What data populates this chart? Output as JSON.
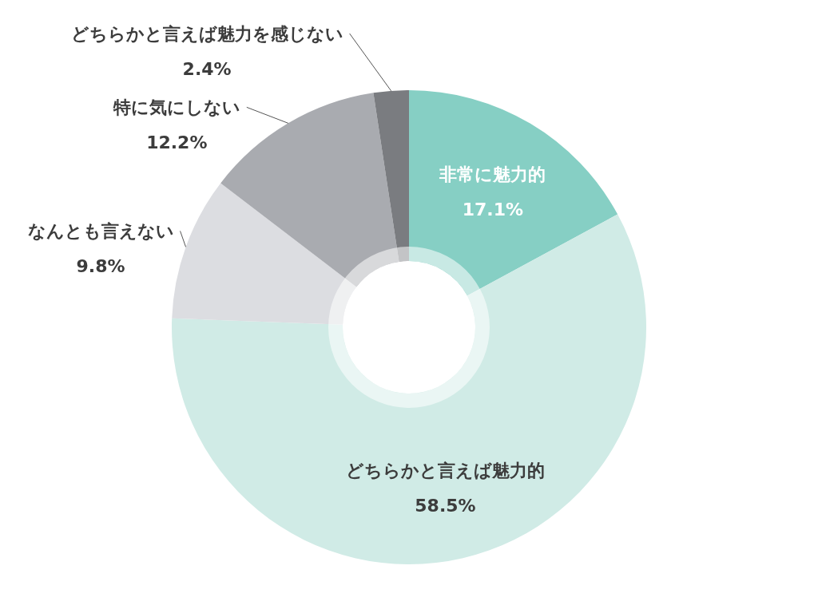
{
  "chart_data": {
    "type": "donut",
    "categories": [
      "非常に魅力的",
      "どちらかと言えば魅力的",
      "なんとも言えない",
      "特に気にしない",
      "どちらかと言えば魅力を感じない"
    ],
    "values": [
      17.1,
      58.5,
      9.8,
      12.2,
      2.4
    ],
    "colors": [
      "#86cfc4",
      "#d0ebe6",
      "#dcdde1",
      "#a9abb0",
      "#7a7c80"
    ],
    "value_labels": [
      "17.1%",
      "58.5%",
      "9.8%",
      "12.2%",
      "2.4%"
    ]
  }
}
